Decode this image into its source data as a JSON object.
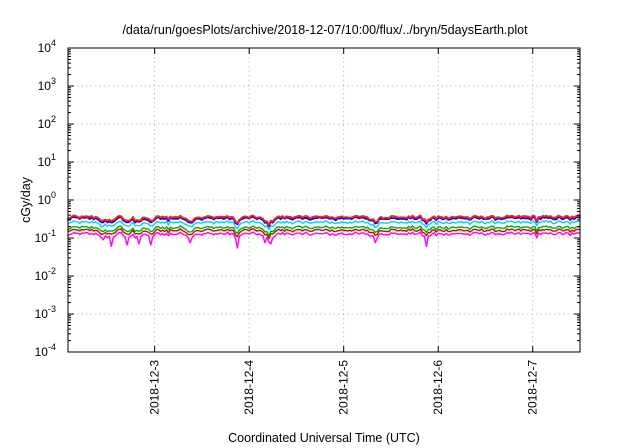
{
  "chart_data": {
    "type": "line",
    "title": "/data/run/goesPlots/archive/2018-12-07/10:00/flux/../bryn/5daysEarth.plot",
    "xlabel": "Coordinated Universal Time (UTC)",
    "ylabel": "cGy/day",
    "yscale": "log",
    "ylim": [
      0.0001,
      10000
    ],
    "xlim": [
      "2018-12-02T02:00",
      "2018-12-07T12:00"
    ],
    "grid": true,
    "legend": "none",
    "y_ticks": [
      {
        "value": 0.0001,
        "base": "10",
        "exp": "-4"
      },
      {
        "value": 0.001,
        "base": "10",
        "exp": "-3"
      },
      {
        "value": 0.01,
        "base": "10",
        "exp": "-2"
      },
      {
        "value": 0.1,
        "base": "10",
        "exp": "-1"
      },
      {
        "value": 1,
        "base": "10",
        "exp": "0"
      },
      {
        "value": 10,
        "base": "10",
        "exp": "1"
      },
      {
        "value": 100,
        "base": "10",
        "exp": "2"
      },
      {
        "value": 1000,
        "base": "10",
        "exp": "3"
      },
      {
        "value": 10000,
        "base": "10",
        "exp": "4"
      }
    ],
    "x_ticks": [
      {
        "value": "2018-12-03",
        "label": "2018-12-3"
      },
      {
        "value": "2018-12-04",
        "label": "2018-12-4"
      },
      {
        "value": "2018-12-05",
        "label": "2018-12-5"
      },
      {
        "value": "2018-12-06",
        "label": "2018-12-6"
      },
      {
        "value": "2018-12-07",
        "label": "2018-12-7"
      }
    ],
    "series": [
      {
        "color": "#ff00ff",
        "base": 0.13,
        "dips": [
          {
            "t": "2018-12-02T11:00",
            "v": 0.09
          },
          {
            "t": "2018-12-02T13:00",
            "v": 0.06
          },
          {
            "t": "2018-12-02T17:00",
            "v": 0.065
          },
          {
            "t": "2018-12-02T20:00",
            "v": 0.07
          },
          {
            "t": "2018-12-02T23:00",
            "v": 0.065
          },
          {
            "t": "2018-12-03T09:00",
            "v": 0.075
          },
          {
            "t": "2018-12-03T21:00",
            "v": 0.055
          },
          {
            "t": "2018-12-04T04:00",
            "v": 0.075
          },
          {
            "t": "2018-12-04T05:30",
            "v": 0.07
          },
          {
            "t": "2018-12-05T08:00",
            "v": 0.075
          },
          {
            "t": "2018-12-05T21:00",
            "v": 0.06
          }
        ]
      },
      {
        "color": "#e00000",
        "base": 0.16,
        "dips": []
      },
      {
        "color": "#00b000",
        "base": 0.19,
        "dips": []
      },
      {
        "color": "#00d8d8",
        "base": 0.26,
        "dips": []
      },
      {
        "color": "#0000ff",
        "base": 0.33,
        "dips": []
      },
      {
        "color": "#ff2020",
        "base": 0.36,
        "dips": []
      }
    ]
  }
}
